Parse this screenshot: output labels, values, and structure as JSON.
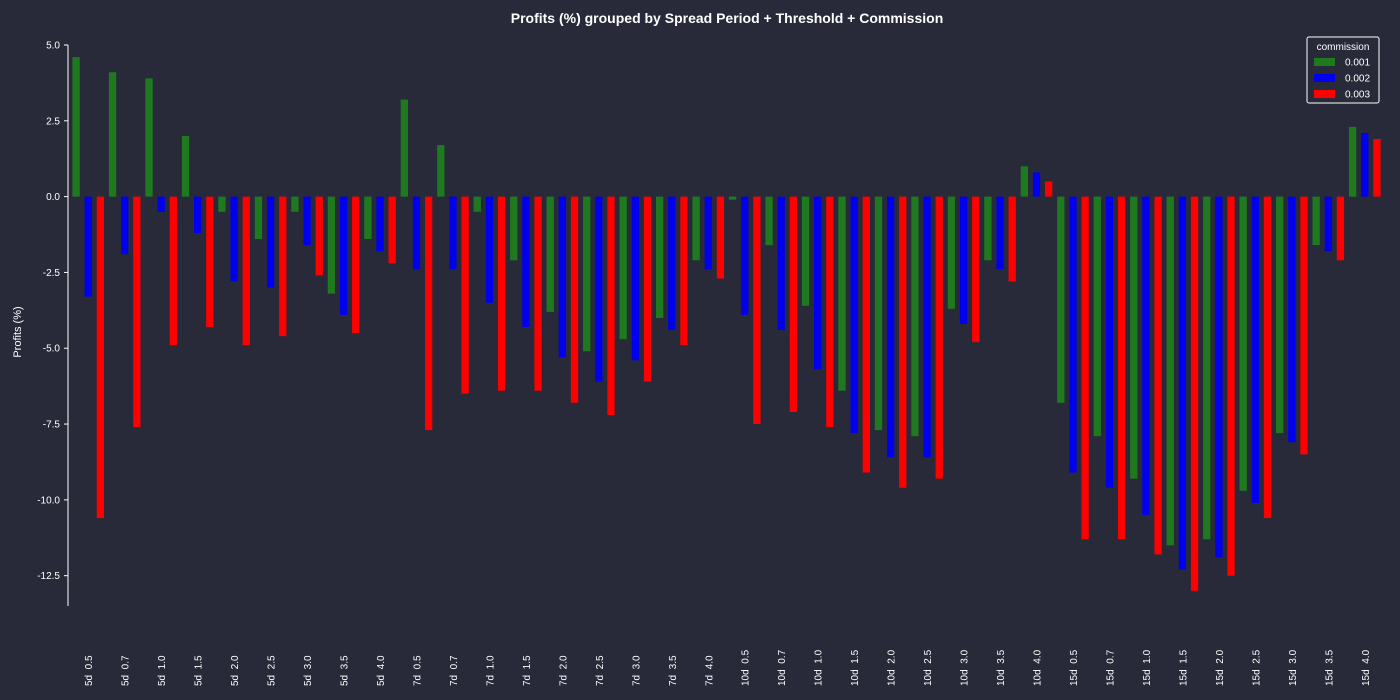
{
  "chart_data": {
    "type": "bar",
    "title": "Profits (%) grouped by Spread Period + Threshold + Commission",
    "ylabel": "Profits (%)",
    "xlabel": "",
    "ylim": [
      -13.5,
      5.0
    ],
    "yticks": [
      5.0,
      2.5,
      0.0,
      -2.5,
      -5.0,
      -7.5,
      -10.0,
      -12.5
    ],
    "ytick_labels": [
      "5.0",
      "2.5",
      "0.0",
      "-2.5",
      "-5.0",
      "-7.5",
      "-10.0",
      "-12.5"
    ],
    "grid": false,
    "legend": {
      "title": "commission",
      "placement": "top-right"
    },
    "categories": [
      "5d  0.5",
      "5d  0.7",
      "5d  1.0",
      "5d  1.5",
      "5d  2.0",
      "5d  2.5",
      "5d  3.0",
      "5d  3.5",
      "5d  4.0",
      "7d  0.5",
      "7d  0.7",
      "7d  1.0",
      "7d  1.5",
      "7d  2.0",
      "7d  2.5",
      "7d  3.0",
      "7d  3.5",
      "7d  4.0",
      "10d  0.5",
      "10d  0.7",
      "10d  1.0",
      "10d  1.5",
      "10d  2.0",
      "10d  2.5",
      "10d  3.0",
      "10d  3.5",
      "10d  4.0",
      "15d  0.5",
      "15d  0.7",
      "15d  1.0",
      "15d  1.5",
      "15d  2.0",
      "15d  2.5",
      "15d  3.0",
      "15d  3.5",
      "15d  4.0"
    ],
    "series": [
      {
        "name": "0.001",
        "color": "#1f7a1f",
        "values": [
          4.6,
          4.1,
          3.9,
          2.0,
          -0.5,
          -1.4,
          -0.5,
          -3.2,
          -1.4,
          3.2,
          1.7,
          -0.5,
          -2.1,
          -3.8,
          -5.1,
          -4.7,
          -4.0,
          -2.1,
          -0.1,
          -1.6,
          -3.6,
          -6.4,
          -7.7,
          -7.9,
          -3.7,
          -2.1,
          1.0,
          -6.8,
          -7.9,
          -9.3,
          -11.5,
          -11.3,
          -9.7,
          -7.8,
          -1.6,
          2.3
        ]
      },
      {
        "name": "0.002",
        "color": "#0000ee",
        "values": [
          -3.3,
          -1.9,
          -0.5,
          -1.2,
          -2.8,
          -3.0,
          -1.6,
          -3.9,
          -1.8,
          -2.4,
          -2.4,
          -3.5,
          -4.3,
          -5.3,
          -6.1,
          -5.4,
          -4.4,
          -2.4,
          -3.9,
          -4.4,
          -5.7,
          -7.8,
          -8.6,
          -8.6,
          -4.2,
          -2.4,
          0.8,
          -9.1,
          -9.6,
          -10.5,
          -12.3,
          -11.9,
          -10.1,
          -8.1,
          -1.8,
          2.1
        ]
      },
      {
        "name": "0.003",
        "color": "#ff0000",
        "values": [
          -10.6,
          -7.6,
          -4.9,
          -4.3,
          -4.9,
          -4.6,
          -2.6,
          -4.5,
          -2.2,
          -7.7,
          -6.5,
          -6.4,
          -6.4,
          -6.8,
          -7.2,
          -6.1,
          -4.9,
          -2.7,
          -7.5,
          -7.1,
          -7.6,
          -9.1,
          -9.6,
          -9.3,
          -4.8,
          -2.8,
          0.5,
          -11.3,
          -11.3,
          -11.8,
          -13.0,
          -12.5,
          -10.6,
          -8.5,
          -2.1,
          1.9
        ]
      }
    ]
  }
}
